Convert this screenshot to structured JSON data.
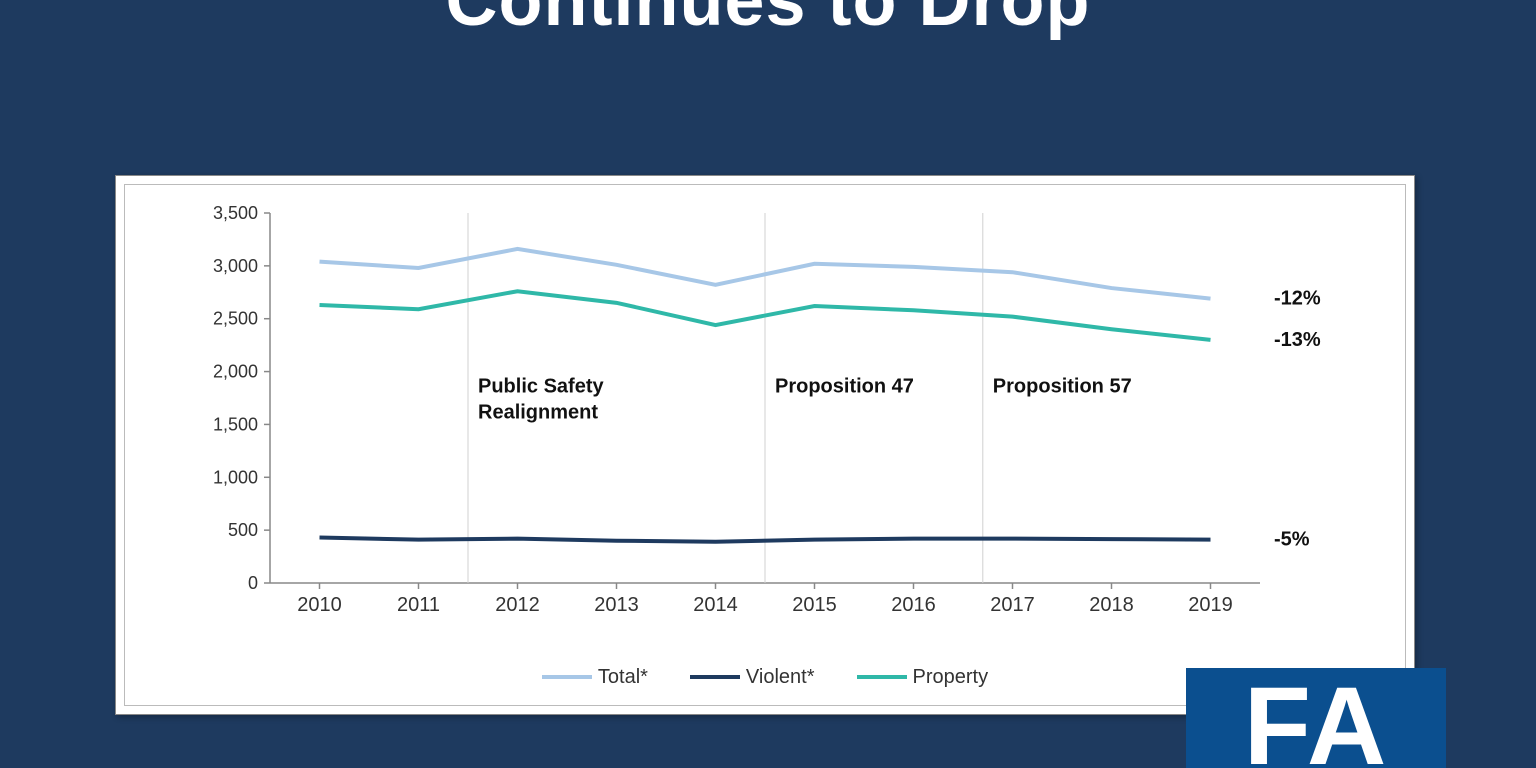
{
  "title": "Continues to Drop",
  "logo": {
    "text": "FA",
    "bg": "#0b4f8f",
    "fg": "#ffffff"
  },
  "chart": {
    "type": "line",
    "background_color": "#ffffff",
    "border_color": "#888888",
    "grid_color": "#d0d0d0",
    "axis_color": "#888888",
    "label_color": "#333333",
    "tick_fontsize": 18,
    "xtick_fontsize": 20,
    "annotation_fontsize": 20,
    "line_width": 4,
    "ylim": [
      0,
      3500
    ],
    "ytick_step": 500,
    "yticks": [
      "0",
      "500",
      "1,000",
      "1,500",
      "2,000",
      "2,500",
      "3,000",
      "3,500"
    ],
    "categories": [
      "2010",
      "2011",
      "2012",
      "2013",
      "2014",
      "2015",
      "2016",
      "2017",
      "2018",
      "2019"
    ],
    "vlines": [
      {
        "x_index": 1.5,
        "label_lines": [
          "Public Safety",
          "Realignment"
        ]
      },
      {
        "x_index": 4.5,
        "label_lines": [
          "Proposition 47"
        ]
      },
      {
        "x_index": 6.7,
        "label_lines": [
          "Proposition 57"
        ]
      }
    ],
    "series": [
      {
        "name": "Total*",
        "color": "#a7c7e7",
        "end_label": "-12%",
        "values": [
          3040,
          2980,
          3160,
          3010,
          2820,
          3020,
          2990,
          2940,
          2790,
          2690
        ]
      },
      {
        "name": "Violent*",
        "color": "#1e3a5f",
        "end_label": "-5%",
        "values": [
          430,
          410,
          420,
          400,
          390,
          410,
          420,
          420,
          415,
          410
        ]
      },
      {
        "name": "Property",
        "color": "#2fb8a8",
        "end_label": "-13%",
        "values": [
          2630,
          2590,
          2760,
          2650,
          2440,
          2620,
          2580,
          2520,
          2400,
          2300
        ]
      }
    ],
    "legend_order": [
      0,
      1,
      2
    ]
  }
}
